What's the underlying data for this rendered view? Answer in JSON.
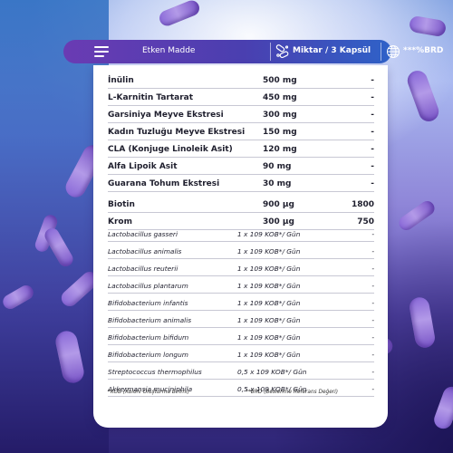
{
  "header": {
    "col_name": "Etken Madde",
    "col_amount": "Miktar / 3 Kapsül",
    "col_brd": "***%BRD"
  },
  "rows_main": [
    {
      "name": "İnülin",
      "amount": "500 mg",
      "brd": "-"
    },
    {
      "name": "L-Karnitin Tartarat",
      "amount": "450 mg",
      "brd": "-"
    },
    {
      "name": "Garsiniya Meyve Ekstresi",
      "amount": "300 mg",
      "brd": "-"
    },
    {
      "name": "Kadın Tuzluğu Meyve Ekstresi",
      "amount": "150 mg",
      "brd": "-"
    },
    {
      "name": "CLA (Konjuge Linoleik Asit)",
      "amount": "120 mg",
      "brd": "-"
    },
    {
      "name": "Alfa Lipoik Asit",
      "amount": "90 mg",
      "brd": "-"
    },
    {
      "name": "Guarana Tohum Ekstresi",
      "amount": "30 mg",
      "brd": "-"
    },
    {
      "name": "Biotin",
      "amount": "900 µg",
      "brd": "1800"
    },
    {
      "name": "Krom",
      "amount": "300 µg",
      "brd": "750"
    }
  ],
  "rows_probiotic": [
    {
      "name": "Lactobacillus gasseri",
      "amount": "1 x 109 KOB*/ Gün",
      "brd": "-"
    },
    {
      "name": "Lactobacillus animalis",
      "amount": "1 x 109 KOB*/ Gün",
      "brd": "-"
    },
    {
      "name": "Lactobacillus reuterii",
      "amount": "1 x 109 KOB*/ Gün",
      "brd": "-"
    },
    {
      "name": "Lactobacillus plantarum",
      "amount": "1 x 109 KOB*/ Gün",
      "brd": "-"
    },
    {
      "name": "Bifidobacterium infantis",
      "amount": "1 x 109 KOB*/ Gün",
      "brd": "-"
    },
    {
      "name": "Bifidobacterium animalis",
      "amount": "1 x 109 KOB*/ Gün",
      "brd": "-"
    },
    {
      "name": "Bifidobacterium bifidum",
      "amount": "1 x 109 KOB*/ Gün",
      "brd": "-"
    },
    {
      "name": "Bifidobacterium longum",
      "amount": "1 x 109 KOB*/ Gün",
      "brd": "-"
    },
    {
      "name": "Streptococcus thermophilus",
      "amount": "0,5 x 109 KOB*/ Gün",
      "brd": "-"
    },
    {
      "name": "Akkermansia muciniphila",
      "amount": "0,5 x 109 KOB*/ Gün",
      "brd": "-"
    }
  ],
  "footnotes": {
    "kob": "*KOB (Koloni Oluşturma Birimi)",
    "brd": "**BRD (Beslenme Referans Değeri)"
  },
  "icons": {
    "menu": "menu-icon",
    "capsules": "capsules-icon",
    "globe": "globe-icon"
  },
  "colors": {
    "header_start": "#6a3bb3",
    "header_end": "#2f62c8",
    "bacteria": "#9a7ae0"
  }
}
